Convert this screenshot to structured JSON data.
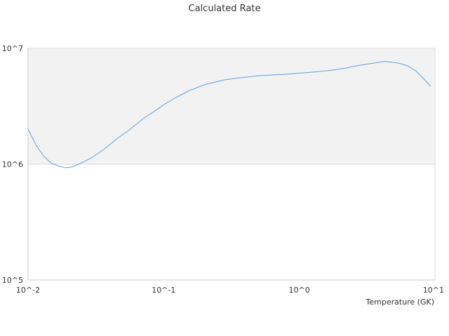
{
  "chart_data": {
    "type": "line",
    "title": "Calculated Rate",
    "xlabel": "Temperature (GK)",
    "ylabel": "",
    "x_scale": "log",
    "y_scale": "log",
    "xlim": [
      0.01,
      10
    ],
    "ylim": [
      100000,
      10000000
    ],
    "x_ticks": [
      {
        "value": 0.01,
        "label": "10^-2"
      },
      {
        "value": 0.1,
        "label": "10^-1"
      },
      {
        "value": 1,
        "label": "10^0"
      },
      {
        "value": 10,
        "label": "10^1"
      }
    ],
    "y_ticks": [
      {
        "value": 100000,
        "label": "10^5"
      },
      {
        "value": 1000000,
        "label": "10^6"
      },
      {
        "value": 10000000,
        "label": "10^7"
      }
    ],
    "grid": false,
    "legend": "none",
    "colors": {
      "line": "#5aa0e6",
      "band_fill": "#f2f2f2",
      "band_border": "#dddddd",
      "axis": "#cccccc"
    },
    "band": {
      "y_from": 1000000,
      "y_to": 10000000
    },
    "series": [
      {
        "x": [
          0.01,
          0.0115,
          0.013,
          0.0148,
          0.0168,
          0.019,
          0.021,
          0.0237,
          0.0267,
          0.03,
          0.0365,
          0.045,
          0.055,
          0.07,
          0.085,
          0.1,
          0.12,
          0.15,
          0.2,
          0.28,
          0.38,
          0.5,
          0.65,
          0.85,
          1.0,
          1.3,
          1.7,
          2.2,
          2.8,
          3.5,
          4.2,
          4.8,
          5.5,
          6.3,
          7.2,
          8.2,
          9.3
        ],
        "y": [
          2000000,
          1450000,
          1180000,
          1020000,
          960000,
          930000,
          945000,
          1000000,
          1070000,
          1150000,
          1350000,
          1650000,
          1950000,
          2450000,
          2850000,
          3250000,
          3700000,
          4250000,
          4850000,
          5350000,
          5600000,
          5800000,
          5900000,
          6000000,
          6100000,
          6250000,
          6450000,
          6750000,
          7150000,
          7450000,
          7700000,
          7600000,
          7400000,
          7050000,
          6400000,
          5500000,
          4700000
        ]
      }
    ]
  }
}
